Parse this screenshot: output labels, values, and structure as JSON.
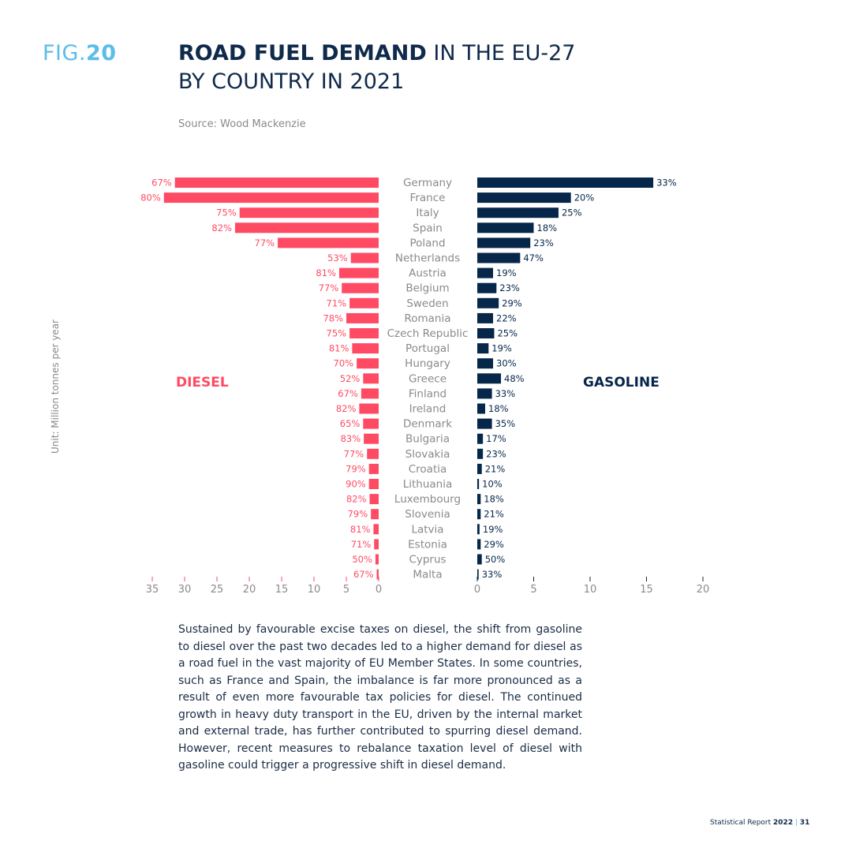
{
  "header": {
    "fig_prefix": "FIG.",
    "fig_number": "20",
    "title_bold": "ROAD FUEL DEMAND",
    "title_rest": " IN THE EU-27",
    "title_line2": "BY COUNTRY IN 2021",
    "source": "Source: Wood Mackenzie"
  },
  "unit_label": "Unit: Million tonnes per year",
  "body_text": "Sustained by favourable excise taxes on diesel, the shift from gasoline to diesel over the past two decades led to a higher demand for diesel as a road fuel in the vast majority of EU Member States. In some countries, such as France and Spain, the imbalance is far more pronounced as a result of even more favourable tax policies for diesel. The continued growth in heavy duty transport in the EU, driven by the internal market and external trade, has further contributed to spurring diesel demand. However, recent measures to rebalance taxation level of diesel with gasoline could trigger a progressive shift in diesel demand.",
  "footer": {
    "report": "Statistical Report ",
    "year": "2022",
    "separator": " | ",
    "page": "31"
  },
  "colors": {
    "diesel": "#ff4a64",
    "gasoline": "#06264a",
    "axis_text": "#8a8a8a",
    "country_text": "#8a8a8a"
  },
  "chart_data": {
    "type": "bar",
    "orientation": "horizontal-butterfly",
    "categories": [
      "Germany",
      "France",
      "Italy",
      "Spain",
      "Poland",
      "Netherlands",
      "Austria",
      "Belgium",
      "Sweden",
      "Romania",
      "Czech Republic",
      "Portugal",
      "Hungary",
      "Greece",
      "Finland",
      "Ireland",
      "Denmark",
      "Bulgaria",
      "Slovakia",
      "Croatia",
      "Lithuania",
      "Luxembourg",
      "Slovenia",
      "Latvia",
      "Estonia",
      "Cyprus",
      "Malta"
    ],
    "series": [
      {
        "name": "DIESEL",
        "side": "left",
        "values": [
          31.5,
          33.2,
          21.5,
          22.2,
          15.6,
          4.3,
          6.1,
          5.7,
          4.5,
          5.0,
          4.5,
          4.1,
          3.4,
          2.4,
          2.7,
          3.0,
          2.4,
          2.3,
          1.8,
          1.5,
          1.5,
          1.4,
          1.2,
          0.8,
          0.7,
          0.5,
          0.3
        ],
        "labels": [
          "67%",
          "80%",
          "75%",
          "82%",
          "77%",
          "53%",
          "81%",
          "77%",
          "71%",
          "78%",
          "75%",
          "81%",
          "70%",
          "52%",
          "67%",
          "82%",
          "65%",
          "83%",
          "77%",
          "79%",
          "90%",
          "82%",
          "79%",
          "81%",
          "71%",
          "50%",
          "67%"
        ],
        "xlim": [
          35,
          0
        ],
        "ticks": [
          35,
          30,
          25,
          20,
          15,
          10,
          5,
          0
        ]
      },
      {
        "name": "GASOLINE",
        "side": "right",
        "values": [
          15.6,
          8.3,
          7.2,
          5.0,
          4.7,
          3.8,
          1.4,
          1.7,
          1.9,
          1.4,
          1.5,
          1.0,
          1.4,
          2.1,
          1.3,
          0.7,
          1.3,
          0.5,
          0.5,
          0.4,
          0.15,
          0.3,
          0.3,
          0.2,
          0.3,
          0.4,
          0.12
        ],
        "labels": [
          "33%",
          "20%",
          "25%",
          "18%",
          "23%",
          "47%",
          "19%",
          "23%",
          "29%",
          "22%",
          "25%",
          "19%",
          "30%",
          "48%",
          "33%",
          "18%",
          "35%",
          "17%",
          "23%",
          "21%",
          "10%",
          "18%",
          "21%",
          "19%",
          "29%",
          "50%",
          "33%"
        ],
        "xlim": [
          0,
          20
        ],
        "ticks": [
          0,
          5,
          10,
          15,
          20
        ]
      }
    ]
  }
}
